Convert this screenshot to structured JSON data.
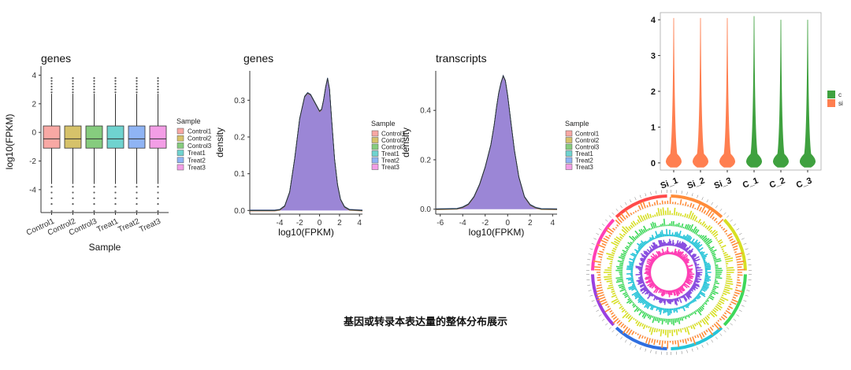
{
  "caption": "基因或转录本表达量的整体分布展示",
  "sample_colors": {
    "Control1": "#f8a8a4",
    "Control2": "#d6c26a",
    "Control3": "#86cc7e",
    "Treat1": "#6fd3cf",
    "Treat2": "#8fb4f4",
    "Treat3": "#f39ee6"
  },
  "group_colors": {
    "Si": "#ff7f50",
    "C": "#3fa13f"
  },
  "chart_data": [
    {
      "type": "box",
      "title": "genes",
      "xlabel": "Sample",
      "ylabel": "log10(FPKM)",
      "ylim": [
        -5.6,
        4.3
      ],
      "yticks": [
        "-4",
        "-2",
        "0",
        "2",
        "4"
      ],
      "categories": [
        "Control1",
        "Control2",
        "Control3",
        "Treat1",
        "Treat2",
        "Treat3"
      ],
      "box_stats": {
        "q1": -1.1,
        "median": -0.45,
        "q3": 0.45,
        "whisker_low": -3.6,
        "whisker_high": 2.7
      },
      "outliers_high": [
        2.8,
        3.0,
        3.2,
        3.4,
        3.6,
        3.8
      ],
      "outliers_low": [
        -3.8,
        -4.2,
        -4.6,
        -5.0,
        -5.5
      ],
      "legend_title": "Sample",
      "legend": [
        "Control1",
        "Control2",
        "Control3",
        "Treat1",
        "Treat2",
        "Treat3"
      ]
    },
    {
      "type": "area",
      "title": "genes",
      "xlabel": "log10(FPKM)",
      "ylabel": "density",
      "xlim": [
        -7,
        4.3
      ],
      "ylim": [
        -0.01,
        0.38
      ],
      "xticks": [
        "-4",
        "-2",
        "0",
        "2",
        "4"
      ],
      "yticks": [
        "0.0",
        "0.1",
        "0.2",
        "0.3"
      ],
      "x": [
        -7,
        -4.5,
        -4,
        -3.5,
        -3,
        -2.5,
        -2,
        -1.5,
        -1.2,
        -0.9,
        -0.6,
        -0.3,
        0,
        0.2,
        0.4,
        0.6,
        0.8,
        1,
        1.2,
        1.5,
        1.8,
        2.1,
        2.5,
        3,
        4.3
      ],
      "y": [
        0,
        0,
        0.002,
        0.012,
        0.05,
        0.14,
        0.25,
        0.31,
        0.32,
        0.315,
        0.3,
        0.285,
        0.27,
        0.275,
        0.3,
        0.335,
        0.36,
        0.33,
        0.25,
        0.14,
        0.07,
        0.03,
        0.01,
        0.002,
        0
      ],
      "legend_title": "Sample",
      "legend": [
        "Control1",
        "Control2",
        "Control3",
        "Treat1",
        "Treat2",
        "Treat3"
      ]
    },
    {
      "type": "area",
      "title": "transcripts",
      "xlabel": "log10(FPKM)",
      "ylabel": "density",
      "xlim": [
        -6.4,
        4.4
      ],
      "ylim": [
        -0.02,
        0.56
      ],
      "xticks": [
        "-6",
        "-4",
        "-2",
        "0",
        "2",
        "4"
      ],
      "yticks": [
        "0.0",
        "0.2",
        "0.4"
      ],
      "x": [
        -6.4,
        -4.5,
        -4,
        -3.5,
        -3,
        -2.5,
        -2,
        -1.5,
        -1.2,
        -1,
        -0.8,
        -0.6,
        -0.4,
        -0.2,
        0,
        0.3,
        0.6,
        1,
        1.5,
        2,
        2.5,
        3,
        4.4
      ],
      "y": [
        0,
        0.002,
        0.008,
        0.02,
        0.05,
        0.1,
        0.17,
        0.26,
        0.34,
        0.41,
        0.47,
        0.51,
        0.54,
        0.52,
        0.46,
        0.35,
        0.24,
        0.13,
        0.05,
        0.018,
        0.006,
        0.001,
        0
      ],
      "legend_title": "Sample",
      "legend": [
        "Control1",
        "Control2",
        "Control3",
        "Treat1",
        "Treat2",
        "Treat3"
      ]
    },
    {
      "type": "violin",
      "ylim": [
        -0.2,
        4.2
      ],
      "yticks": [
        "0",
        "1",
        "2",
        "3",
        "4"
      ],
      "categories": [
        "Si_1",
        "Si_2",
        "Si_3",
        "C_1",
        "C_2",
        "C_3"
      ],
      "groups": [
        "Si",
        "Si",
        "Si",
        "C",
        "C",
        "C"
      ],
      "max_values": [
        4.05,
        4.05,
        4.05,
        4.1,
        4.0,
        4.0
      ],
      "legend": [
        "c",
        "si"
      ]
    },
    {
      "type": "circos",
      "track_colors": [
        "#ff8c3a",
        "#d7df23",
        "#3ed85a",
        "#25c4d8",
        "#8a4fe0",
        "#ff3fb5"
      ],
      "outer_segments": [
        "#ff8c3a",
        "#d7df23",
        "#3ed85a",
        "#25c4d8",
        "#2f6fe0",
        "#9a3fe0",
        "#ff3fb5",
        "#ff4a4a"
      ]
    }
  ]
}
